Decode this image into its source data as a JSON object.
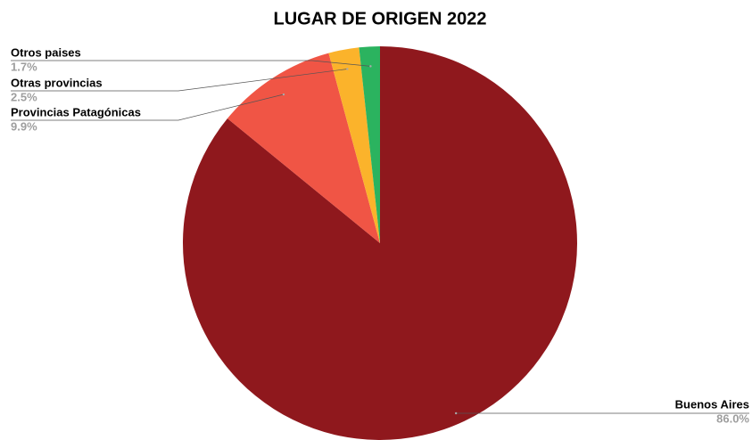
{
  "chart_data": {
    "type": "pie",
    "title": "LUGAR DE ORIGEN 2022",
    "categories": [
      "Buenos Aires",
      "Provincias Patagónicas",
      "Otras provincias",
      "Otros paises"
    ],
    "values": [
      86.0,
      9.9,
      2.5,
      1.7
    ],
    "value_labels": [
      "86.0%",
      "9.9%",
      "2.5%",
      "1.7%"
    ],
    "colors": [
      "#8f181d",
      "#f05545",
      "#fbb32b",
      "#2bb35f"
    ]
  }
}
